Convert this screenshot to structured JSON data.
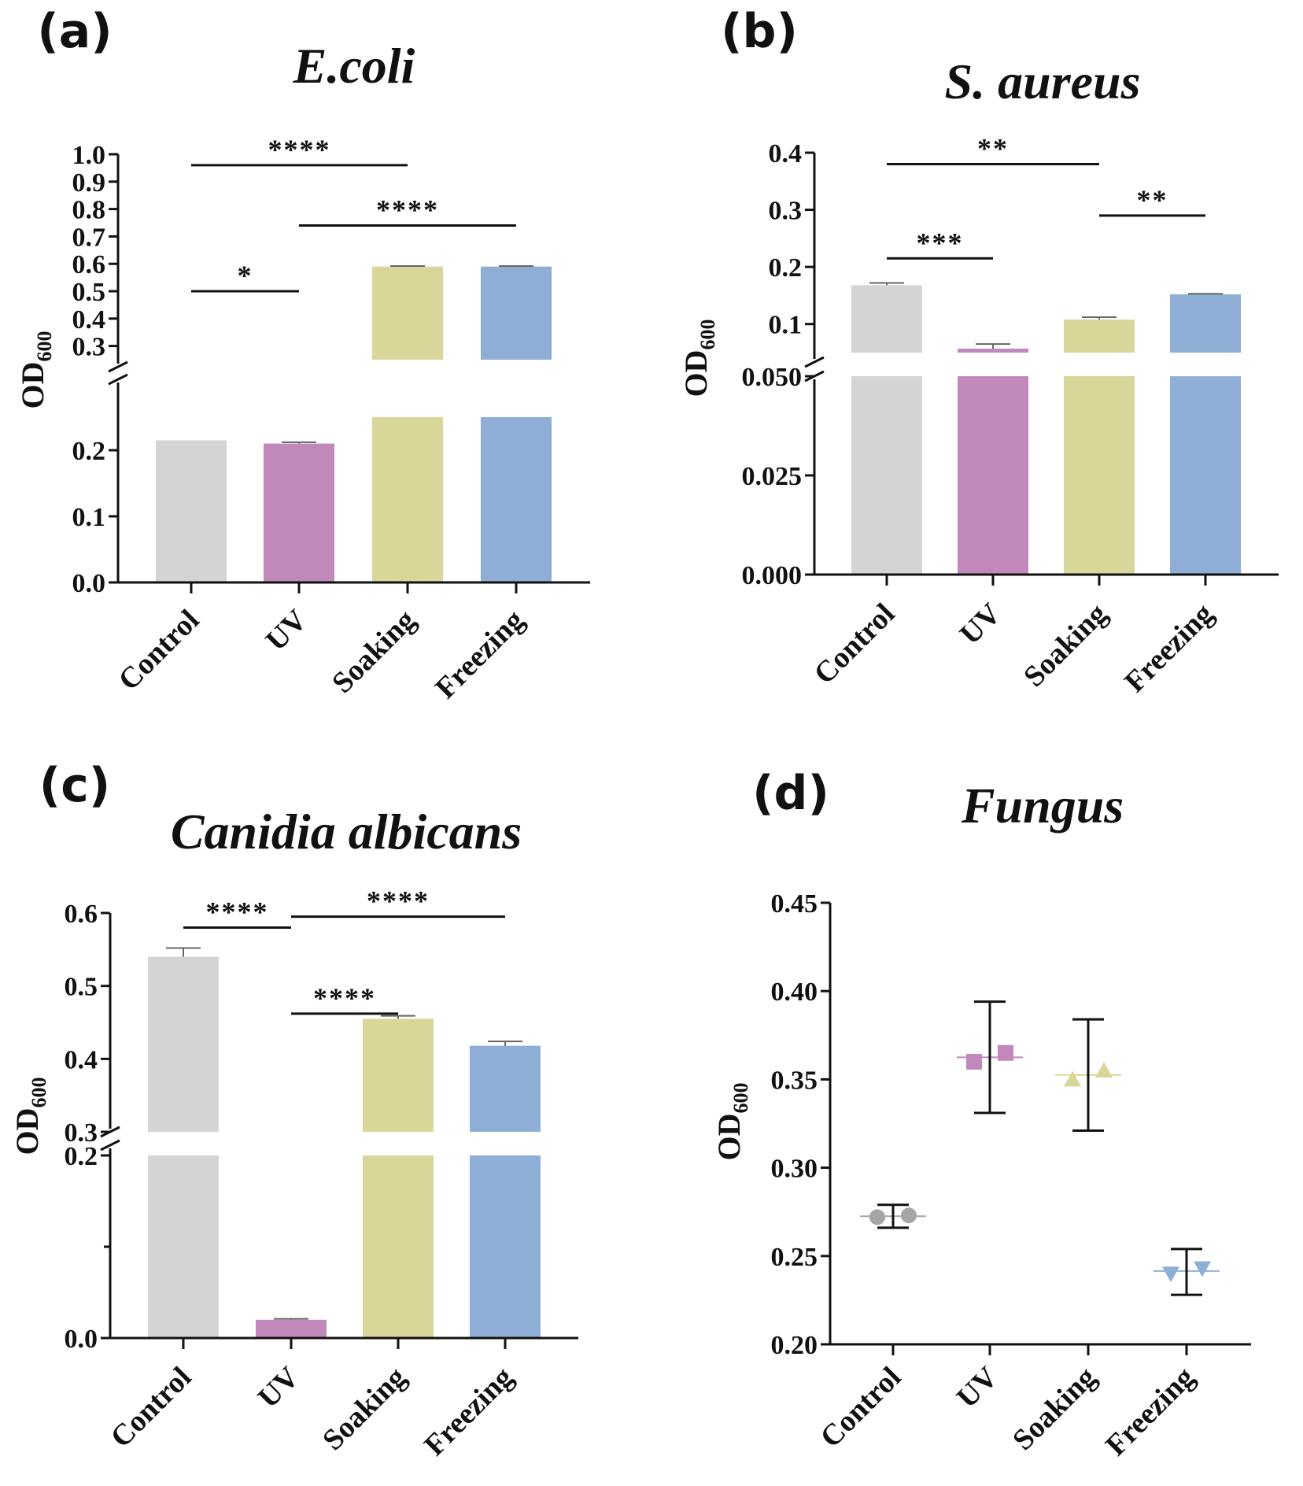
{
  "chart_data": [
    {
      "panel": "(a)",
      "type": "bar",
      "title": "E.coli",
      "ylabel_main": "OD",
      "ylabel_sub": "600",
      "categories": [
        "Control",
        "UV",
        "Soaking",
        "Freezing"
      ],
      "colors": [
        "#d4d4d4",
        "#c189ba",
        "#d8d799",
        "#8eaed6"
      ],
      "values": [
        0.215,
        0.21,
        0.59,
        0.59
      ],
      "errors": [
        0.0,
        0.002,
        0.002,
        0.002
      ],
      "axis_break": true,
      "lower_ylim": [
        0,
        0.25
      ],
      "lower_ticks": [
        "0.0",
        "0.1",
        "0.2"
      ],
      "upper_ylim": [
        0.25,
        1.0
      ],
      "upper_ticks": [
        "0.3",
        "0.4",
        "0.5",
        "0.6",
        "0.7",
        "0.8",
        "0.9",
        "1.0"
      ],
      "significance": [
        {
          "from": 0,
          "to": 2,
          "level": 0.96,
          "label": "****"
        },
        {
          "from": 1,
          "to": 3,
          "level": 0.74,
          "label": "****"
        },
        {
          "from": 0,
          "to": 1,
          "level": 0.5,
          "label": "*"
        }
      ]
    },
    {
      "panel": "(b)",
      "type": "bar",
      "title": "S. aureus",
      "ylabel_main": "OD",
      "ylabel_sub": "600",
      "categories": [
        "Control",
        "UV",
        "Soaking",
        "Freezing"
      ],
      "colors": [
        "#d4d4d4",
        "#c189ba",
        "#d8d799",
        "#8eaed6"
      ],
      "values": [
        0.168,
        0.057,
        0.108,
        0.152
      ],
      "errors": [
        0.004,
        0.008,
        0.004,
        0.001
      ],
      "axis_break": true,
      "lower_ylim": [
        0,
        0.05
      ],
      "lower_ticks": [
        "0.000",
        "0.025",
        "0.050"
      ],
      "upper_ylim": [
        0.05,
        0.4
      ],
      "upper_ticks": [
        "0.1",
        "0.2",
        "0.3",
        "0.4"
      ],
      "significance": [
        {
          "from": 0,
          "to": 2,
          "level": 0.38,
          "label": "**"
        },
        {
          "from": 2,
          "to": 3,
          "level": 0.29,
          "label": "**"
        },
        {
          "from": 0,
          "to": 1,
          "level": 0.215,
          "label": "***"
        }
      ]
    },
    {
      "panel": "(c)",
      "type": "bar",
      "title": "Canidia albicans",
      "ylabel_main": "OD",
      "ylabel_sub": "600",
      "categories": [
        "Control",
        "UV",
        "Soaking",
        "Freezing"
      ],
      "colors": [
        "#d4d4d4",
        "#c189ba",
        "#d8d799",
        "#8eaed6"
      ],
      "values": [
        0.54,
        0.02,
        0.455,
        0.418
      ],
      "errors": [
        0.012,
        0.001,
        0.004,
        0.006
      ],
      "axis_break": true,
      "lower_ylim": [
        0,
        0.2
      ],
      "lower_ticks": [
        "0.0",
        "0.2"
      ],
      "upper_ylim": [
        0.3,
        0.6
      ],
      "upper_ticks": [
        "0.3",
        "0.4",
        "0.5",
        "0.6"
      ],
      "significance": [
        {
          "from": 1,
          "to": 3,
          "level": 0.595,
          "label": "****"
        },
        {
          "from": 0,
          "to": 1,
          "level": 0.58,
          "label": "****"
        },
        {
          "from": 1,
          "to": 2,
          "level": 0.462,
          "label": "****"
        }
      ]
    },
    {
      "panel": "(d)",
      "type": "scatter",
      "title": "Fungus",
      "ylabel_main": "OD",
      "ylabel_sub": "600",
      "categories": [
        "Control",
        "UV",
        "Soaking",
        "Freezing"
      ],
      "colors": [
        "#a6a6a6",
        "#c189ba",
        "#d8d799",
        "#8eaed6"
      ],
      "markers": [
        "circle",
        "square",
        "triangle-up",
        "triangle-down"
      ],
      "points": [
        [
          0.272,
          0.273
        ],
        [
          0.36,
          0.365
        ],
        [
          0.35,
          0.355
        ],
        [
          0.24,
          0.243
        ]
      ],
      "means": [
        0.2725,
        0.3625,
        0.3525,
        0.2415
      ],
      "err_low": [
        0.266,
        0.331,
        0.321,
        0.228
      ],
      "err_high": [
        0.279,
        0.394,
        0.384,
        0.254
      ],
      "ylim": [
        0.2,
        0.45
      ],
      "ticks": [
        "0.20",
        "0.25",
        "0.30",
        "0.35",
        "0.40",
        "0.45"
      ]
    }
  ]
}
